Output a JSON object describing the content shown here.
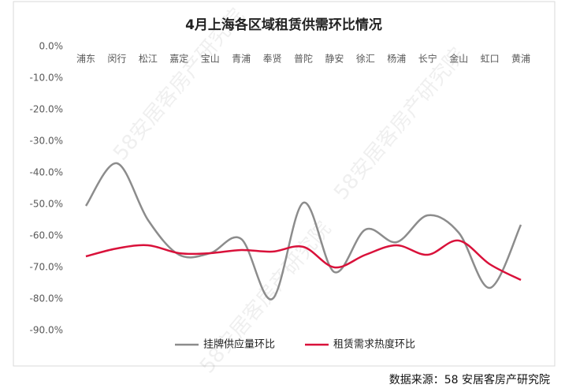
{
  "chart_data": {
    "type": "line",
    "title": "4月上海各区域租赁供需环比情况",
    "categories": [
      "浦东",
      "闵行",
      "松江",
      "嘉定",
      "宝山",
      "青浦",
      "奉贤",
      "普陀",
      "静安",
      "徐汇",
      "杨浦",
      "长宁",
      "金山",
      "虹口",
      "黄浦"
    ],
    "series": [
      {
        "name": "挂牌供应量环比",
        "color": "#8c8c8c",
        "values": [
          -50.5,
          -37,
          -55,
          -66,
          -65.5,
          -61,
          -80,
          -49.5,
          -71.5,
          -58,
          -62,
          -53.5,
          -59,
          -76.5,
          -56.5
        ]
      },
      {
        "name": "租赁需求热度环比",
        "color": "#d9113a",
        "values": [
          -66.5,
          -64,
          -63,
          -65.5,
          -65.5,
          -64.5,
          -65,
          -63.5,
          -70,
          -66,
          -63,
          -66,
          -61.5,
          -69,
          -74
        ]
      }
    ],
    "ylim": [
      0,
      -90
    ],
    "yticks": [
      {
        "value": 0,
        "label": "0.0%"
      },
      {
        "value": -10,
        "label": "-10.0%"
      },
      {
        "value": -20,
        "label": "-20.0%"
      },
      {
        "value": -30,
        "label": "-30.0%"
      },
      {
        "value": -40,
        "label": "-40.0%"
      },
      {
        "value": -50,
        "label": "-50.0%"
      },
      {
        "value": -60,
        "label": "-60.0%"
      },
      {
        "value": -70,
        "label": "-70.0%"
      },
      {
        "value": -80,
        "label": "-80.0%"
      },
      {
        "value": -90,
        "label": "-90.0%"
      }
    ],
    "legend": "bottom",
    "source": "数据来源：58 安居客房产研究院",
    "watermark": "58安居客房产研究院"
  }
}
